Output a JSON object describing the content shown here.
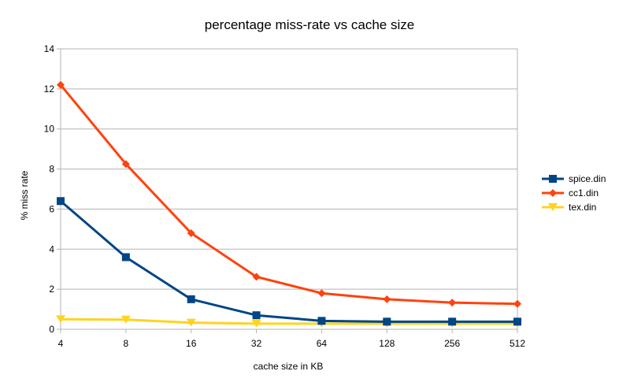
{
  "chart_data": {
    "type": "line",
    "title": "percentage miss-rate vs cache size",
    "xlabel": "cache size in KB",
    "ylabel": "% miss rate",
    "categories": [
      "4",
      "8",
      "16",
      "32",
      "64",
      "128",
      "256",
      "512"
    ],
    "ylim": [
      0,
      14
    ],
    "yticks": [
      "0",
      "2",
      "4",
      "6",
      "8",
      "10",
      "12",
      "14"
    ],
    "grid": true,
    "legend_position": "right",
    "series": [
      {
        "name": "spice.din",
        "color": "#004586",
        "marker": "square",
        "values": [
          6.4,
          3.6,
          1.5,
          0.7,
          0.42,
          0.38,
          0.38,
          0.38
        ]
      },
      {
        "name": "cc1.din",
        "color": "#ff420e",
        "marker": "diamond",
        "values": [
          12.2,
          8.25,
          4.8,
          2.62,
          1.8,
          1.5,
          1.33,
          1.27
        ]
      },
      {
        "name": "tex.din",
        "color": "#ffd320",
        "marker": "triangle-down",
        "values": [
          0.5,
          0.48,
          0.33,
          0.28,
          0.28,
          0.28,
          0.28,
          0.28
        ]
      }
    ]
  }
}
